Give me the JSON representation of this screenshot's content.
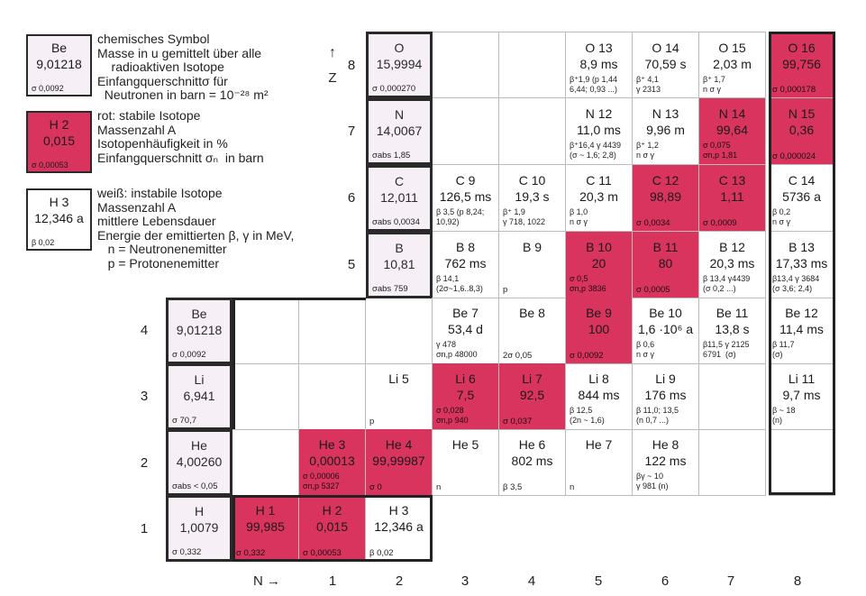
{
  "legend": {
    "element_box": {
      "symbol": "Be",
      "value": "9,01218",
      "note": "σ 0,0092"
    },
    "element_text": "chemisches Symbol\nMasse in u gemittelt über alle\n    radioaktiven Isotope\nEinfangquerschnittσ für\n  Neutronen in barn = 10⁻²⁸ m²",
    "stable_box": {
      "symbol": "H 2",
      "value": "0,015",
      "note": "σ 0,00053"
    },
    "stable_text": "rot: stabile Isotope\nMassenzahl A\nIsotopenhäufigkeit in %\nEinfangquerschnitt σₙ  in barn",
    "unstable_box": {
      "symbol": "H 3",
      "value": "12,346 a",
      "note": "β 0,02"
    },
    "unstable_text": "weiß: instabile Isotope\nMassenzahl A\nmittlere Lebensdauer\nEnergie der emittierten β, γ in MeV,\n   n = Neutronenemitter\n   p = Protonenemitter"
  },
  "axes": {
    "z_arrow": "↑",
    "z_label": "Z",
    "n_label": "N →",
    "z_numbers": [
      "8",
      "7",
      "6",
      "5",
      "4",
      "3",
      "2",
      "1"
    ],
    "n_numbers": [
      "1",
      "2",
      "3",
      "4",
      "5",
      "6",
      "7",
      "8"
    ]
  },
  "cells": {
    "O": {
      "symbol": "O",
      "value": "15,9994",
      "note": "σ 0,000270"
    },
    "O13": {
      "symbol": "O 13",
      "value": "8,9 ms",
      "note": "β⁺1,9 (p 1,44\n6,44; 0,93 ...)"
    },
    "O14": {
      "symbol": "O 14",
      "value": "70,59 s",
      "note": "β⁺ 4,1\nγ 2313"
    },
    "O15": {
      "symbol": "O 15",
      "value": "2,03 m",
      "note": "β⁺ 1,7\nn σ γ"
    },
    "O16": {
      "symbol": "O 16",
      "value": "99,756",
      "note": "σ 0,000178"
    },
    "N": {
      "symbol": "N",
      "value": "14,0067",
      "note": "σabs 1,85"
    },
    "N12": {
      "symbol": "N 12",
      "value": "11,0 ms",
      "note": "β⁺16,4 γ 4439\n(σ ~ 1,6; 2,8)"
    },
    "N13": {
      "symbol": "N 13",
      "value": "9,96 m",
      "note": "β⁺ 1,2\nn σ γ"
    },
    "N14": {
      "symbol": "N 14",
      "value": "99,64",
      "note": "σ 0,075\nσn,p 1,81"
    },
    "N15": {
      "symbol": "N 15",
      "value": "0,36",
      "note": "σ 0,000024"
    },
    "C": {
      "symbol": "C",
      "value": "12,011",
      "note": "σabs 0,0034"
    },
    "C9": {
      "symbol": "C 9",
      "value": "126,5 ms",
      "note": "β 3,5 (p 8,24;\n10,92)"
    },
    "C10": {
      "symbol": "C 10",
      "value": "19,3 s",
      "note": "β⁺ 1,9\nγ 718, 1022"
    },
    "C11": {
      "symbol": "C 11",
      "value": "20,3 m",
      "note": "β 1,0\nn σ γ"
    },
    "C12": {
      "symbol": "C 12",
      "value": "98,89",
      "note": "σ 0,0034"
    },
    "C13": {
      "symbol": "C 13",
      "value": "1,11",
      "note": "σ 0,0009"
    },
    "C14": {
      "symbol": "C 14",
      "value": "5736 a",
      "note": "β 0,2\nn σ γ"
    },
    "B": {
      "symbol": "B",
      "value": "10,81",
      "note": "σabs 759"
    },
    "B8": {
      "symbol": "B 8",
      "value": "762 ms",
      "note": "β 14,1\n(2σ~1,6..8,3)"
    },
    "B9": {
      "symbol": "B 9",
      "value": "",
      "note": "p"
    },
    "B10": {
      "symbol": "B 10",
      "value": "20",
      "note": "σ 0,5\nσn,p 3836"
    },
    "B11": {
      "symbol": "B 11",
      "value": "80",
      "note": "σ 0,0005"
    },
    "B12": {
      "symbol": "B 12",
      "value": "20,3 ms",
      "note": "β 13,4 γ4439\n(σ 0,2 ...)"
    },
    "B13": {
      "symbol": "B 13",
      "value": "17,33 ms",
      "note": "β13,4 γ 3684\n(σ 3,6; 2,4)"
    },
    "Be": {
      "symbol": "Be",
      "value": "9,01218",
      "note": "σ 0,0092"
    },
    "Be7": {
      "symbol": "Be 7",
      "value": "53,4 d",
      "note": "γ 478\nσn,p 48000"
    },
    "Be8": {
      "symbol": "Be 8",
      "value": "",
      "note": "2σ 0,05"
    },
    "Be9": {
      "symbol": "Be 9",
      "value": "100",
      "note": "σ 0,0092"
    },
    "Be10": {
      "symbol": "Be 10",
      "value": "1,6 ·10⁶ a",
      "note": "β 0,6\nn σ γ"
    },
    "Be11": {
      "symbol": "Be 11",
      "value": "13,8 s",
      "note": "β11,5 γ 2125\n6791  (σ)"
    },
    "Be12": {
      "symbol": "Be 12",
      "value": "11,4 ms",
      "note": "β 11,7\n(σ)"
    },
    "Li": {
      "symbol": "Li",
      "value": "6,941",
      "note": "σ 70,7"
    },
    "Li5": {
      "symbol": "Li 5",
      "value": "",
      "note": "p"
    },
    "Li6": {
      "symbol": "Li 6",
      "value": "7,5",
      "note": "σ 0,028\nσn,p 940"
    },
    "Li7": {
      "symbol": "Li 7",
      "value": "92,5",
      "note": "σ 0,037"
    },
    "Li8": {
      "symbol": "Li 8",
      "value": "844 ms",
      "note": "β 12,5\n(2n ~ 1,6)"
    },
    "Li9": {
      "symbol": "Li 9",
      "value": "176 ms",
      "note": "β 11,0; 13,5\n(n 0,7 ...)"
    },
    "Li11": {
      "symbol": "Li 11",
      "value": "9,7 ms",
      "note": "β ~ 18\n(n)"
    },
    "He": {
      "symbol": "He",
      "value": "4,00260",
      "note": "σabs < 0,05"
    },
    "He3": {
      "symbol": "He 3",
      "value": "0,00013",
      "note": "σ 0,00006\nσn,p 5327"
    },
    "He4": {
      "symbol": "He 4",
      "value": "99,99987",
      "note": "σ 0"
    },
    "He5": {
      "symbol": "He 5",
      "value": "",
      "note": "n"
    },
    "He6": {
      "symbol": "He 6",
      "value": "802 ms",
      "note": "β 3,5"
    },
    "He7": {
      "symbol": "He 7",
      "value": "",
      "note": "n"
    },
    "He8": {
      "symbol": "He 8",
      "value": "122 ms",
      "note": "βγ ~ 10\nγ 981 (n)"
    },
    "H": {
      "symbol": "H",
      "value": "1,0079",
      "note": "σ 0,332"
    },
    "H1": {
      "symbol": "H 1",
      "value": "99,985",
      "note": "σ 0,332"
    },
    "H2": {
      "symbol": "H 2",
      "value": "0,015",
      "note": "σ 0,00053"
    },
    "H3": {
      "symbol": "H 3",
      "value": "12,346 a",
      "note": "β 0,02"
    }
  },
  "colors": {
    "stable": "#d9345e",
    "element": "#f6eff6",
    "unstable": "#ffffff"
  }
}
